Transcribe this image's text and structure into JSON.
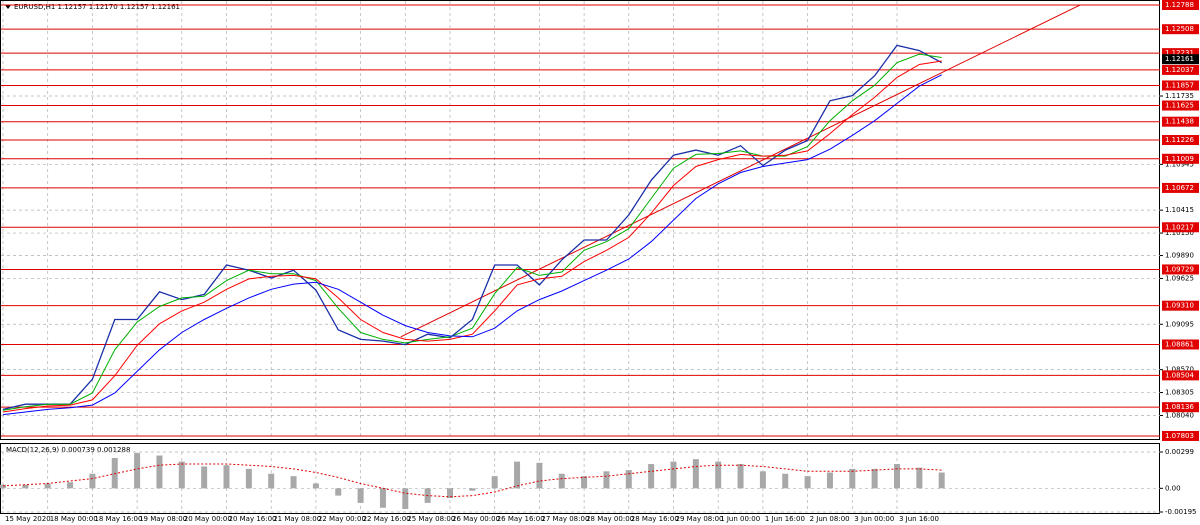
{
  "chart_data": [
    {
      "type": "line",
      "title": "EURUSD,H1  1.12157 1.12170 1.12157 1.12161",
      "categories": [
        "15 May 2020",
        null,
        "18 May 00:00",
        null,
        "18 May 16:00",
        null,
        "19 May 08:00",
        null,
        "20 May 00:00",
        null,
        "20 May 16:00",
        null,
        "21 May 08:00",
        null,
        "22 May 00:00",
        null,
        "22 May 16:00",
        null,
        "25 May 08:00",
        null,
        "26 May 00:00",
        null,
        "26 May 16:00",
        null,
        "27 May 08:00",
        null,
        "28 May 00:00",
        null,
        "28 May 16:00",
        null,
        "29 May 08:00",
        null,
        "1 Jun 00:00",
        null,
        "1 Jun 16:00",
        null,
        "2 Jun 08:00",
        null,
        "3 Jun 00:00",
        null,
        "3 Jun 16:00",
        null,
        null
      ],
      "series": [
        {
          "color": "#1a2fa8",
          "values": [
            1.0811,
            1.0817,
            1.0817,
            1.0817,
            1.0846,
            1.0915,
            1.0915,
            1.0947,
            1.0938,
            1.0944,
            1.0978,
            1.0972,
            1.0963,
            1.0972,
            1.0949,
            1.0903,
            1.0892,
            1.089,
            1.0886,
            1.0898,
            1.0894,
            1.0915,
            1.0978,
            1.0978,
            1.0955,
            1.0984,
            1.1007,
            1.1007,
            1.1036,
            1.1076,
            1.1105,
            1.1111,
            1.1105,
            1.1116,
            1.1093,
            1.1111,
            1.1122,
            1.1168,
            1.1174,
            1.1197,
            1.1232,
            1.1226,
            1.1212
          ]
        },
        {
          "color": "#00b000",
          "values": [
            1.081,
            1.0814,
            1.0817,
            1.0817,
            1.083,
            1.088,
            1.0912,
            1.093,
            1.094,
            1.0942,
            1.096,
            1.0972,
            1.0968,
            1.0968,
            1.096,
            1.0928,
            1.09,
            1.0892,
            1.0888,
            1.0892,
            1.0895,
            1.0905,
            1.0945,
            1.0975,
            1.0966,
            1.097,
            1.0995,
            1.1005,
            1.102,
            1.1055,
            1.109,
            1.1106,
            1.1107,
            1.111,
            1.1104,
            1.1104,
            1.1115,
            1.1145,
            1.1168,
            1.1186,
            1.1212,
            1.1222,
            1.1218
          ]
        },
        {
          "color": "#ff0000",
          "values": [
            1.0808,
            1.0812,
            1.0815,
            1.0816,
            1.0822,
            1.085,
            1.0885,
            1.091,
            1.0925,
            1.0935,
            1.095,
            1.0962,
            1.0965,
            1.0966,
            1.0962,
            1.094,
            1.0915,
            1.09,
            1.0892,
            1.089,
            1.0892,
            1.0898,
            1.0925,
            1.0955,
            1.0962,
            1.0965,
            1.0982,
            1.0995,
            1.101,
            1.1038,
            1.107,
            1.1092,
            1.11,
            1.1106,
            1.1104,
            1.1105,
            1.111,
            1.113,
            1.1152,
            1.1172,
            1.1195,
            1.121,
            1.1214
          ]
        },
        {
          "color": "#0000ff",
          "values": [
            1.0805,
            1.0808,
            1.0811,
            1.0813,
            1.0816,
            1.083,
            1.0855,
            1.088,
            1.09,
            1.0915,
            1.0928,
            1.094,
            1.095,
            1.0956,
            1.0958,
            1.095,
            1.0935,
            1.092,
            1.0908,
            1.09,
            1.0896,
            1.0895,
            1.0905,
            1.0925,
            1.0938,
            1.0948,
            1.096,
            1.0972,
            1.0985,
            1.1005,
            1.103,
            1.1055,
            1.1072,
            1.1085,
            1.1092,
            1.1096,
            1.11,
            1.1112,
            1.1128,
            1.1145,
            1.1165,
            1.1185,
            1.1198
          ]
        }
      ],
      "ylim": [
        1.07768,
        1.12834
      ],
      "yticks": [
        1.11735,
        1.10945,
        1.10415,
        {
          "value": 1.1015,
          "label": "1.10150"
        },
        {
          "value": 1.0989,
          "label": "1.09890"
        },
        1.09625,
        1.09095,
        {
          "value": 1.0857,
          "label": "1.08570"
        },
        1.08305,
        {
          "value": 1.0804,
          "label": "1.08040"
        }
      ],
      "levels": [
        1.12788,
        1.12508,
        1.12231,
        1.12037,
        1.11857,
        1.11625,
        1.11438,
        1.11226,
        1.11009,
        1.10672,
        1.10217,
        1.09729,
        {
          "value": 1.0931,
          "label": "1.09310"
        },
        1.08861,
        1.08504,
        1.08136,
        1.07803
      ],
      "level_color": "#e00000",
      "current_price": 1.12161,
      "trendline": {
        "x": [
          17.8,
          48.2
        ],
        "y": [
          1.0895,
          1.12788
        ],
        "color": "#e00000"
      },
      "grid": true
    },
    {
      "type": "bar",
      "title": "MACD(12,26,9) 0.000739 0.001288",
      "ylim": [
        -0.00195,
        0.00299
      ],
      "yticks": [
        0.00299,
        {
          "value": 0,
          "label": "0.00"
        },
        -0.00195
      ],
      "series": [
        {
          "type": "bar",
          "color": "#a8a8a8",
          "values": [
            0.0003,
            0.0003,
            0.0004,
            0.0005,
            0.0012,
            0.0025,
            0.0029,
            0.0027,
            0.0022,
            0.0018,
            0.0019,
            0.0016,
            0.0012,
            0.001,
            0.0004,
            -0.0006,
            -0.0012,
            -0.0016,
            -0.0017,
            -0.0012,
            -0.0008,
            -0.0002,
            0.001,
            0.0022,
            0.0021,
            0.0012,
            0.001,
            0.0014,
            0.0015,
            0.002,
            0.0022,
            0.0024,
            0.0022,
            0.002,
            0.0014,
            0.0012,
            0.001,
            0.0013,
            0.0016,
            0.0016,
            0.002,
            0.0017,
            0.0013
          ]
        },
        {
          "type": "line",
          "color": "#e00000",
          "values": [
            0.0002,
            0.0003,
            0.0004,
            0.0006,
            0.0008,
            0.0012,
            0.0016,
            0.0019,
            0.002,
            0.002,
            0.002,
            0.0019,
            0.0018,
            0.0016,
            0.0013,
            0.0009,
            0.0004,
            0.0,
            -0.0004,
            -0.0006,
            -0.0007,
            -0.0006,
            -0.0003,
            0.0002,
            0.0006,
            0.0008,
            0.0009,
            0.001,
            0.0012,
            0.0014,
            0.0016,
            0.0018,
            0.0019,
            0.0019,
            0.0018,
            0.0016,
            0.0014,
            0.0014,
            0.0014,
            0.0015,
            0.0016,
            0.0016,
            0.0015
          ]
        }
      ],
      "grid": true
    }
  ]
}
